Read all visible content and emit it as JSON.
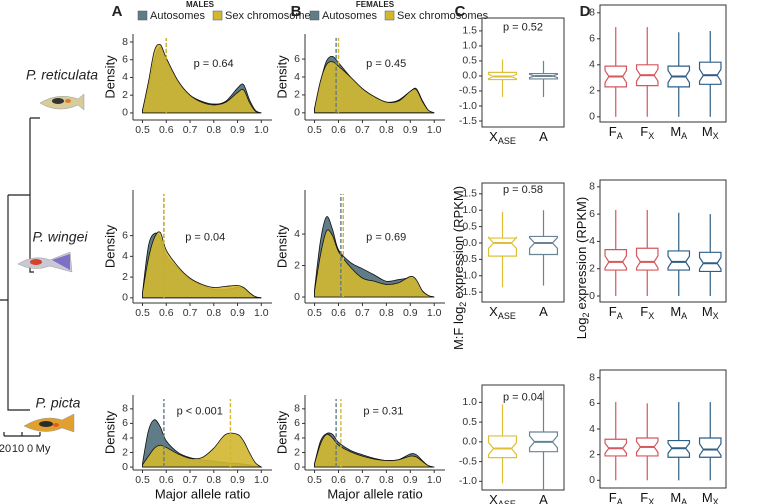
{
  "figure": {
    "panel_labels": [
      "A",
      "B",
      "C",
      "D"
    ],
    "column_headers": [
      "MALES",
      "FEMALES"
    ],
    "species": [
      "P. reticulata",
      "P. wingei",
      "P. picta"
    ],
    "c_axis_label": {
      "text": "M:F log",
      "sub": "2",
      "rest": "expression (RPKM)"
    },
    "d_axis_label": {
      "text": "Log",
      "sub": "2",
      "rest": "expression (RPKM)"
    },
    "scale_bar": [
      "20",
      "10",
      "0",
      "My"
    ]
  },
  "chart_data": [
    {
      "type": "area",
      "ylabel": "Density",
      "annotation": "p = 0.64",
      "x": [
        0.5,
        0.525,
        0.55,
        0.575,
        0.6,
        0.65,
        0.7,
        0.75,
        0.8,
        0.85,
        0.9,
        0.925,
        0.95,
        0.975,
        1.0
      ],
      "series": [
        {
          "name": "Autosomes",
          "color": "#607c88",
          "median": 0.6,
          "values": [
            0.3,
            3,
            6,
            7.4,
            6,
            3.5,
            2,
            1.3,
            1,
            1.3,
            2.8,
            3.2,
            1.5,
            0.3,
            0
          ]
        },
        {
          "name": "Sex chromosomes",
          "color": "#d2b731",
          "median": 0.6,
          "values": [
            0.3,
            3.5,
            7,
            7.7,
            6.2,
            3.6,
            2,
            1.2,
            0.9,
            1.2,
            2.3,
            2.6,
            1.2,
            0.2,
            0
          ]
        }
      ],
      "xlim": [
        0.46,
        1.045
      ],
      "xticks": [
        0.5,
        0.6,
        0.7,
        0.8,
        0.9,
        {
          "value": 1,
          "label": "1.0"
        }
      ],
      "ylim": [
        -0.8,
        8.9
      ],
      "yticks": [
        0,
        2,
        4,
        6,
        8
      ]
    },
    {
      "type": "area",
      "ylabel": "Density",
      "annotation": "p = 0.45",
      "x": [
        0.5,
        0.525,
        0.55,
        0.575,
        0.6,
        0.65,
        0.7,
        0.75,
        0.8,
        0.85,
        0.9,
        0.925,
        0.95,
        0.975,
        1.0
      ],
      "series": [
        {
          "name": "Autosomes",
          "color": "#607c88",
          "median": 0.59,
          "values": [
            0.5,
            3.5,
            5.8,
            6.3,
            5.6,
            4,
            2.7,
            1.8,
            1.2,
            1.4,
            2.4,
            2.7,
            1.4,
            0.3,
            0
          ]
        },
        {
          "name": "Sex chromosomes",
          "color": "#d2b731",
          "median": 0.6,
          "values": [
            0.5,
            3.6,
            5.4,
            5.7,
            5.2,
            4,
            2.7,
            1.8,
            1.2,
            1.3,
            2.4,
            2.6,
            1.3,
            0.3,
            0
          ]
        }
      ],
      "xlim": [
        0.46,
        1.045
      ],
      "xticks": [
        0.5,
        0.6,
        0.7,
        0.8,
        0.9,
        {
          "value": 1,
          "label": "1.0"
        }
      ],
      "ylim": [
        -0.8,
        8.8
      ],
      "yticks": [
        0,
        2,
        4,
        6
      ]
    },
    {
      "type": "box",
      "annotation": "p = 0.52",
      "categories": [
        {
          "text": "X",
          "sub": "ASE"
        },
        {
          "text": "A"
        }
      ],
      "colors": [
        "#e0bf38",
        "#6a8591"
      ],
      "boxes": [
        {
          "low": -0.7,
          "q1": -0.12,
          "median": -0.02,
          "q3": 0.12,
          "high": 0.55
        },
        {
          "low": -0.7,
          "q1": -0.1,
          "median": 0.0,
          "q3": 0.08,
          "high": 0.5
        }
      ],
      "ylim": [
        -1.7,
        1.93
      ],
      "yticks": [
        -1.5,
        {
          "value": -1,
          "label": "-1.0"
        },
        -0.5,
        {
          "value": 0,
          "label": "0.0"
        },
        0.5,
        {
          "value": 1,
          "label": "1.0"
        },
        1.5
      ]
    },
    {
      "type": "box",
      "categories": [
        {
          "text": "F",
          "sub": "A"
        },
        {
          "text": "F",
          "sub": "X"
        },
        {
          "text": "M",
          "sub": "A"
        },
        {
          "text": "M",
          "sub": "X"
        }
      ],
      "colors": [
        "#d4575d",
        "#d4575d",
        "#2f5e85",
        "#2f5e85"
      ],
      "boxes": [
        {
          "low": 0,
          "q1": 2.3,
          "median": 3.1,
          "q3": 3.9,
          "high": 6.9
        },
        {
          "low": 0,
          "q1": 2.4,
          "median": 3.2,
          "q3": 4.0,
          "high": 6.9
        },
        {
          "low": 0,
          "q1": 2.3,
          "median": 3.1,
          "q3": 3.9,
          "high": 6.5
        },
        {
          "low": 0,
          "q1": 2.5,
          "median": 3.2,
          "q3": 4.2,
          "high": 6.6
        }
      ],
      "ylim": [
        -0.4,
        8.6
      ],
      "yticks": [
        0,
        2,
        4,
        6,
        8
      ]
    },
    {
      "type": "area",
      "ylabel": "Density",
      "annotation": "p = 0.04",
      "x": [
        0.5,
        0.525,
        0.55,
        0.575,
        0.6,
        0.65,
        0.7,
        0.75,
        0.8,
        0.85,
        0.9,
        0.925,
        0.95,
        0.975,
        1.0
      ],
      "series": [
        {
          "color": "#607c88",
          "median": 0.59,
          "values": [
            0.5,
            5,
            6.2,
            5.8,
            4,
            2.8,
            1.8,
            1.2,
            0.8,
            0.8,
            1,
            1,
            0.5,
            0.1,
            0
          ]
        },
        {
          "color": "#d2b731",
          "median": 0.59,
          "values": [
            0.5,
            3.8,
            5.8,
            6.3,
            4.6,
            3,
            1.9,
            1.3,
            1,
            1.1,
            1.2,
            1,
            0.5,
            0.1,
            0
          ]
        }
      ],
      "xlim": [
        0.46,
        1.045
      ],
      "xticks": [
        0.5,
        0.6,
        0.7,
        0.8,
        0.9,
        {
          "value": 1,
          "label": "1.0"
        }
      ],
      "ylim": [
        -0.5,
        10.4
      ],
      "yticks": [
        0,
        2,
        4,
        6
      ]
    },
    {
      "type": "area",
      "ylabel": "Density",
      "annotation": "p = 0.69",
      "x": [
        0.5,
        0.525,
        0.55,
        0.575,
        0.6,
        0.65,
        0.7,
        0.75,
        0.8,
        0.85,
        0.9,
        0.925,
        0.95,
        0.975,
        1.0
      ],
      "series": [
        {
          "color": "#607c88",
          "median": 0.61,
          "values": [
            0.5,
            3.6,
            5.1,
            4.3,
            3,
            2.2,
            1.8,
            1.4,
            1,
            1.1,
            1.2,
            1,
            0.4,
            0.1,
            0
          ]
        },
        {
          "color": "#d2b731",
          "median": 0.62,
          "values": [
            0.4,
            2.7,
            4.2,
            3.9,
            2.9,
            1.9,
            1.2,
            1,
            0.8,
            0.9,
            1.3,
            1.1,
            0.4,
            0.1,
            0
          ]
        }
      ],
      "xlim": [
        0.46,
        1.045
      ],
      "xticks": [
        0.5,
        0.6,
        0.7,
        0.8,
        0.9,
        {
          "value": 1,
          "label": "1.0"
        }
      ],
      "ylim": [
        -0.38,
        6.8
      ],
      "yticks": [
        0,
        2,
        4
      ]
    },
    {
      "type": "box",
      "annotation": "p = 0.58",
      "categories": [
        {
          "text": "X",
          "sub": "ASE"
        },
        {
          "text": "A"
        }
      ],
      "colors": [
        "#e0bf38",
        "#6a8591"
      ],
      "boxes": [
        {
          "low": -1.35,
          "q1": -0.4,
          "median": 0.0,
          "q3": 0.15,
          "high": 0.95
        },
        {
          "low": -1.3,
          "q1": -0.35,
          "median": 0.0,
          "q3": 0.2,
          "high": 1.0
        }
      ],
      "ylim": [
        -1.8,
        1.83
      ],
      "yticks": [
        -1.5,
        {
          "value": -1,
          "label": "-1.0"
        },
        -0.5,
        {
          "value": 0,
          "label": "0.0"
        },
        0.5,
        {
          "value": 1,
          "label": "1.0"
        },
        1.5
      ]
    },
    {
      "type": "box",
      "categories": [
        {
          "text": "F",
          "sub": "A"
        },
        {
          "text": "F",
          "sub": "X"
        },
        {
          "text": "M",
          "sub": "A"
        },
        {
          "text": "M",
          "sub": "X"
        }
      ],
      "colors": [
        "#d4575d",
        "#d4575d",
        "#2f5e85",
        "#2f5e85"
      ],
      "boxes": [
        {
          "low": 0,
          "q1": 1.9,
          "median": 2.5,
          "q3": 3.4,
          "high": 6.3
        },
        {
          "low": 0,
          "q1": 1.9,
          "median": 2.5,
          "q3": 3.5,
          "high": 6.3
        },
        {
          "low": 0,
          "q1": 1.9,
          "median": 2.5,
          "q3": 3.3,
          "high": 6.1
        },
        {
          "low": 0,
          "q1": 1.8,
          "median": 2.4,
          "q3": 3.2,
          "high": 6.0
        }
      ],
      "ylim": [
        -0.44,
        8.5
      ],
      "yticks": [
        0,
        2,
        4,
        6,
        8
      ]
    },
    {
      "type": "area",
      "ylabel": "Density",
      "xlabel": "Major allele ratio",
      "annotation": "p < 0.001",
      "x": [
        0.5,
        0.525,
        0.55,
        0.575,
        0.6,
        0.65,
        0.7,
        0.75,
        0.8,
        0.85,
        0.9,
        0.925,
        0.95,
        0.975,
        1.0
      ],
      "series": [
        {
          "color": "#607c88",
          "median": 0.59,
          "values": [
            0.5,
            5,
            6.5,
            5.5,
            3.6,
            2,
            1.3,
            1,
            0.8,
            0.6,
            0.5,
            0.4,
            0.3,
            0.1,
            0
          ]
        },
        {
          "color": "#d2b731",
          "median": 0.87,
          "values": [
            0.3,
            1.5,
            2.6,
            3,
            2.7,
            1.8,
            1.2,
            1.3,
            2.6,
            4.5,
            4.5,
            3.6,
            2,
            0.6,
            0
          ]
        }
      ],
      "xlim": [
        0.46,
        1.045
      ],
      "xticks": [
        0.5,
        0.6,
        0.7,
        0.8,
        0.9,
        {
          "value": 1,
          "label": "1.0"
        }
      ],
      "ylim": [
        -0.4,
        9.9
      ],
      "yticks": [
        0,
        2,
        4,
        6,
        8
      ]
    },
    {
      "type": "area",
      "ylabel": "Density",
      "xlabel": "Major allele ratio",
      "annotation": "p = 0.31",
      "x": [
        0.5,
        0.525,
        0.55,
        0.575,
        0.6,
        0.65,
        0.7,
        0.75,
        0.8,
        0.85,
        0.9,
        0.925,
        0.95,
        0.975,
        1.0
      ],
      "series": [
        {
          "color": "#607c88",
          "median": 0.59,
          "values": [
            0.5,
            3.6,
            4.6,
            4.5,
            3.4,
            2.3,
            1.7,
            1.2,
            0.9,
            1,
            1.8,
            1.7,
            0.9,
            0.2,
            0
          ]
        },
        {
          "color": "#d2b731",
          "median": 0.61,
          "values": [
            0.5,
            3.2,
            4.5,
            4,
            3,
            2.1,
            1.5,
            1.1,
            0.9,
            1,
            1.5,
            1.4,
            0.8,
            0.2,
            0
          ]
        }
      ],
      "xlim": [
        0.46,
        1.045
      ],
      "xticks": [
        0.5,
        0.6,
        0.7,
        0.8,
        0.9,
        {
          "value": 1,
          "label": "1.0"
        }
      ],
      "ylim": [
        -0.4,
        9.9
      ],
      "yticks": [
        0,
        2,
        4,
        6,
        8
      ]
    },
    {
      "type": "box",
      "annotation": "p = 0.04",
      "categories": [
        {
          "text": "X",
          "sub": "ASE"
        },
        {
          "text": "A"
        }
      ],
      "colors": [
        "#e0bf38",
        "#6a8591"
      ],
      "boxes": [
        {
          "low": -1.05,
          "q1": -0.4,
          "median": -0.17,
          "q3": 0.15,
          "high": 0.95
        },
        {
          "low": -1.2,
          "q1": -0.25,
          "median": 0.0,
          "q3": 0.25,
          "high": 1.3
        }
      ],
      "ylim": [
        -1.22,
        1.44
      ],
      "yticks": [
        {
          "value": -1,
          "label": "-1.0"
        },
        -0.5,
        {
          "value": 0,
          "label": "0.0"
        },
        0.5,
        {
          "value": 1,
          "label": "1.0"
        }
      ]
    },
    {
      "type": "box",
      "categories": [
        {
          "text": "F",
          "sub": "A"
        },
        {
          "text": "F",
          "sub": "X"
        },
        {
          "text": "M",
          "sub": "A"
        },
        {
          "text": "M",
          "sub": "X"
        }
      ],
      "colors": [
        "#d4575d",
        "#d4575d",
        "#2f5e85",
        "#2f5e85"
      ],
      "boxes": [
        {
          "low": 0,
          "q1": 1.9,
          "median": 2.5,
          "q3": 3.2,
          "high": 6.1
        },
        {
          "low": 0,
          "q1": 1.9,
          "median": 2.6,
          "q3": 3.3,
          "high": 6.0
        },
        {
          "low": 0,
          "q1": 1.8,
          "median": 2.5,
          "q3": 3.1,
          "high": 6.1
        },
        {
          "low": 0,
          "q1": 1.8,
          "median": 2.4,
          "q3": 3.3,
          "high": 6.1
        }
      ],
      "ylim": [
        -0.6,
        8.6
      ],
      "yticks": [
        0,
        2,
        4,
        6,
        8
      ]
    }
  ]
}
